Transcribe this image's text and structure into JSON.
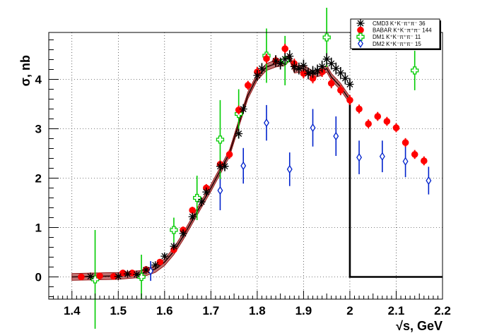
{
  "chart_data": {
    "type": "scatter",
    "title": "",
    "xlabel": "√s, GeV",
    "ylabel": "σ, nb",
    "xlim": [
      1.35,
      2.2
    ],
    "ylim": [
      -0.45,
      4.95
    ],
    "x_ticks": [
      1.4,
      1.5,
      1.6,
      1.7,
      1.8,
      1.9,
      2.0,
      2.1,
      2.2
    ],
    "x_tick_labels": [
      "1.4",
      "1.5",
      "1.6",
      "1.7",
      "1.8",
      "1.9",
      "2",
      "2.1",
      "2.2"
    ],
    "y_ticks": [
      0,
      1,
      2,
      3,
      4
    ],
    "y_tick_labels": [
      "0",
      "1",
      "2",
      "3",
      "4"
    ],
    "grid": true,
    "legend_position": "top-right",
    "series": [
      {
        "name": "CMD3 K⁺K⁻π⁺π⁻ 36",
        "color": "#000000",
        "marker": "asterisk",
        "points": [
          [
            1.44,
            0.01,
            0.02
          ],
          [
            1.5,
            0.01,
            0.02
          ],
          [
            1.52,
            0.06,
            0.03
          ],
          [
            1.54,
            0.05,
            0.03
          ],
          [
            1.56,
            0.14,
            0.04
          ],
          [
            1.58,
            0.24,
            0.05
          ],
          [
            1.6,
            0.42,
            0.06
          ],
          [
            1.62,
            0.62,
            0.07
          ],
          [
            1.64,
            0.88,
            0.08
          ],
          [
            1.66,
            1.22,
            0.08
          ],
          [
            1.68,
            1.52,
            0.09
          ],
          [
            1.69,
            1.72,
            0.09
          ],
          [
            1.72,
            2.24,
            0.1
          ],
          [
            1.73,
            2.24,
            0.1
          ],
          [
            1.76,
            2.9,
            0.1
          ],
          [
            1.77,
            3.4,
            0.1
          ],
          [
            1.8,
            4.08,
            0.11
          ],
          [
            1.81,
            4.22,
            0.11
          ],
          [
            1.84,
            4.37,
            0.12
          ],
          [
            1.85,
            4.32,
            0.12
          ],
          [
            1.86,
            4.41,
            0.12
          ],
          [
            1.87,
            4.47,
            0.12
          ],
          [
            1.88,
            4.26,
            0.12
          ],
          [
            1.89,
            4.22,
            0.12
          ],
          [
            1.9,
            4.28,
            0.12
          ],
          [
            1.91,
            4.12,
            0.12
          ],
          [
            1.92,
            4.15,
            0.12
          ],
          [
            1.93,
            4.18,
            0.12
          ],
          [
            1.94,
            4.26,
            0.12
          ],
          [
            1.95,
            4.41,
            0.12
          ],
          [
            1.96,
            4.32,
            0.12
          ],
          [
            1.97,
            4.22,
            0.12
          ],
          [
            1.98,
            4.13,
            0.12
          ],
          [
            1.99,
            4.02,
            0.12
          ],
          [
            2.0,
            3.9,
            0.12
          ]
        ]
      },
      {
        "name": "BABAR K⁺K⁻π⁺π⁻ 144",
        "color": "#ff0000",
        "marker": "circle",
        "points": [
          [
            1.42,
            0.0,
            0.02
          ],
          [
            1.46,
            0.02,
            0.02
          ],
          [
            1.49,
            0.01,
            0.02
          ],
          [
            1.51,
            0.08,
            0.03
          ],
          [
            1.53,
            0.08,
            0.03
          ],
          [
            1.56,
            0.15,
            0.04
          ],
          [
            1.59,
            0.3,
            0.05
          ],
          [
            1.62,
            0.55,
            0.06
          ],
          [
            1.64,
            0.95,
            0.07
          ],
          [
            1.66,
            1.35,
            0.07
          ],
          [
            1.69,
            1.8,
            0.08
          ],
          [
            1.72,
            2.28,
            0.08
          ],
          [
            1.74,
            2.48,
            0.09
          ],
          [
            1.76,
            3.38,
            0.09
          ],
          [
            1.78,
            3.88,
            0.09
          ],
          [
            1.8,
            4.15,
            0.1
          ],
          [
            1.82,
            4.42,
            0.1
          ],
          [
            1.84,
            4.38,
            0.1
          ],
          [
            1.86,
            4.62,
            0.1
          ],
          [
            1.88,
            4.32,
            0.1
          ],
          [
            1.9,
            4.12,
            0.1
          ],
          [
            1.92,
            4.02,
            0.1
          ],
          [
            1.94,
            4.15,
            0.1
          ],
          [
            1.96,
            3.92,
            0.1
          ],
          [
            1.98,
            3.78,
            0.1
          ],
          [
            2.0,
            3.58,
            0.1
          ],
          [
            2.02,
            3.4,
            0.09
          ],
          [
            2.04,
            3.1,
            0.09
          ],
          [
            2.06,
            3.25,
            0.09
          ],
          [
            2.08,
            3.15,
            0.09
          ],
          [
            2.1,
            3.02,
            0.09
          ],
          [
            2.12,
            2.72,
            0.09
          ],
          [
            2.14,
            2.48,
            0.09
          ],
          [
            2.16,
            2.35,
            0.09
          ]
        ]
      },
      {
        "name": "DM1 K⁺K⁻π⁺π⁻ 11",
        "color": "#00cc00",
        "marker": "open-cross",
        "points": [
          [
            1.45,
            -0.05,
            1.0
          ],
          [
            1.55,
            0.0,
            0.45
          ],
          [
            1.62,
            0.95,
            0.25
          ],
          [
            1.67,
            1.6,
            0.45
          ],
          [
            1.72,
            2.78,
            0.8
          ],
          [
            1.76,
            3.3,
            0.5
          ],
          [
            1.82,
            4.48,
            0.55
          ],
          [
            1.86,
            4.38,
            0.5
          ],
          [
            1.95,
            4.85,
            0.6
          ],
          [
            2.14,
            4.18,
            0.4
          ]
        ]
      },
      {
        "name": "DM2 K⁺K⁻π⁺π⁻ 15",
        "color": "#0022cc",
        "marker": "open-diamond",
        "points": [
          [
            1.57,
            0.12,
            0.2
          ],
          [
            1.72,
            1.75,
            0.4
          ],
          [
            1.77,
            2.25,
            0.36
          ],
          [
            1.82,
            3.12,
            0.36
          ],
          [
            1.87,
            2.18,
            0.34
          ],
          [
            1.92,
            3.02,
            0.38
          ],
          [
            1.97,
            2.85,
            0.4
          ],
          [
            2.02,
            2.42,
            0.34
          ],
          [
            2.07,
            2.44,
            0.32
          ],
          [
            2.12,
            2.34,
            0.32
          ],
          [
            2.17,
            1.95,
            0.28
          ]
        ]
      }
    ],
    "band": {
      "color": "#8b0000",
      "x": [
        1.4,
        1.5,
        1.55,
        1.58,
        1.6,
        1.62,
        1.64,
        1.66,
        1.68,
        1.7,
        1.72,
        1.74,
        1.76,
        1.78,
        1.8,
        1.82,
        1.84,
        1.86,
        1.87,
        1.88,
        1.9,
        1.92,
        1.94,
        1.95,
        1.96,
        1.98,
        2.0
      ],
      "y": [
        0.0,
        0.02,
        0.06,
        0.16,
        0.3,
        0.52,
        0.82,
        1.15,
        1.48,
        1.8,
        2.15,
        2.5,
        3.1,
        3.68,
        4.05,
        4.25,
        4.32,
        4.35,
        4.45,
        4.2,
        4.22,
        4.1,
        4.15,
        4.22,
        4.05,
        3.85,
        3.58
      ],
      "halfwidth": 0.07
    },
    "step_line": {
      "color": "#000000",
      "points": [
        [
          2.0,
          3.58
        ],
        [
          2.0,
          0.0
        ],
        [
          2.2,
          0.0
        ]
      ]
    }
  }
}
